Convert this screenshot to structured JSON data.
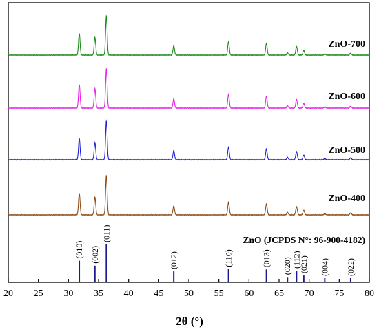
{
  "chart_data": {
    "type": "line",
    "xlabel": "2θ (°)",
    "xlim": [
      20,
      80
    ],
    "x_ticks": [
      20,
      25,
      30,
      35,
      40,
      45,
      50,
      55,
      60,
      65,
      70,
      75,
      80
    ],
    "y_ticks_visible": false,
    "grid": false,
    "series": [
      {
        "name": "ZnO-700",
        "color": "#1a8a1a",
        "peaks": [
          [
            31.8,
            55
          ],
          [
            34.4,
            45
          ],
          [
            36.3,
            100
          ],
          [
            47.5,
            24
          ],
          [
            56.6,
            34
          ],
          [
            62.9,
            30
          ],
          [
            66.4,
            6
          ],
          [
            67.9,
            22
          ],
          [
            69.1,
            12
          ],
          [
            72.6,
            3
          ],
          [
            76.9,
            5
          ]
        ]
      },
      {
        "name": "ZnO-600",
        "color": "#e81ee8",
        "peaks": [
          [
            31.8,
            60
          ],
          [
            34.4,
            50
          ],
          [
            36.3,
            100
          ],
          [
            47.5,
            24
          ],
          [
            56.6,
            35
          ],
          [
            62.9,
            30
          ],
          [
            66.4,
            6
          ],
          [
            67.9,
            22
          ],
          [
            69.1,
            12
          ],
          [
            72.6,
            3
          ],
          [
            76.9,
            5
          ]
        ]
      },
      {
        "name": "ZnO-500",
        "color": "#1f1fd6",
        "peaks": [
          [
            31.8,
            54
          ],
          [
            34.4,
            44
          ],
          [
            36.3,
            100
          ],
          [
            47.5,
            24
          ],
          [
            56.6,
            32
          ],
          [
            62.9,
            28
          ],
          [
            66.4,
            6
          ],
          [
            67.9,
            21
          ],
          [
            69.1,
            12
          ],
          [
            72.6,
            3
          ],
          [
            76.9,
            5
          ]
        ]
      },
      {
        "name": "ZnO-400",
        "color": "#8b4a14",
        "peaks": [
          [
            31.8,
            55
          ],
          [
            34.4,
            45
          ],
          [
            36.3,
            100
          ],
          [
            47.5,
            23
          ],
          [
            56.6,
            32
          ],
          [
            62.9,
            28
          ],
          [
            66.4,
            6
          ],
          [
            67.9,
            21
          ],
          [
            69.1,
            12
          ],
          [
            72.6,
            3
          ],
          [
            76.9,
            5
          ]
        ]
      }
    ],
    "reference": {
      "name": "ZnO (JCPDS N°: 96-900-4182)",
      "color": "#1a1a8c",
      "lines": [
        {
          "x": 31.8,
          "hkl": "(010)",
          "intensity": 57
        },
        {
          "x": 34.4,
          "hkl": "(002)",
          "intensity": 44
        },
        {
          "x": 36.3,
          "hkl": "(011)",
          "intensity": 100
        },
        {
          "x": 47.5,
          "hkl": "(012)",
          "intensity": 29
        },
        {
          "x": 56.6,
          "hkl": "(110)",
          "intensity": 35
        },
        {
          "x": 62.9,
          "hkl": "(013)",
          "intensity": 34
        },
        {
          "x": 66.4,
          "hkl": "(020)",
          "intensity": 14
        },
        {
          "x": 67.9,
          "hkl": "(112)",
          "intensity": 31
        },
        {
          "x": 69.1,
          "hkl": "(021)",
          "intensity": 18
        },
        {
          "x": 72.6,
          "hkl": "(004)",
          "intensity": 11
        },
        {
          "x": 76.9,
          "hkl": "(022)",
          "intensity": 11
        }
      ]
    }
  }
}
